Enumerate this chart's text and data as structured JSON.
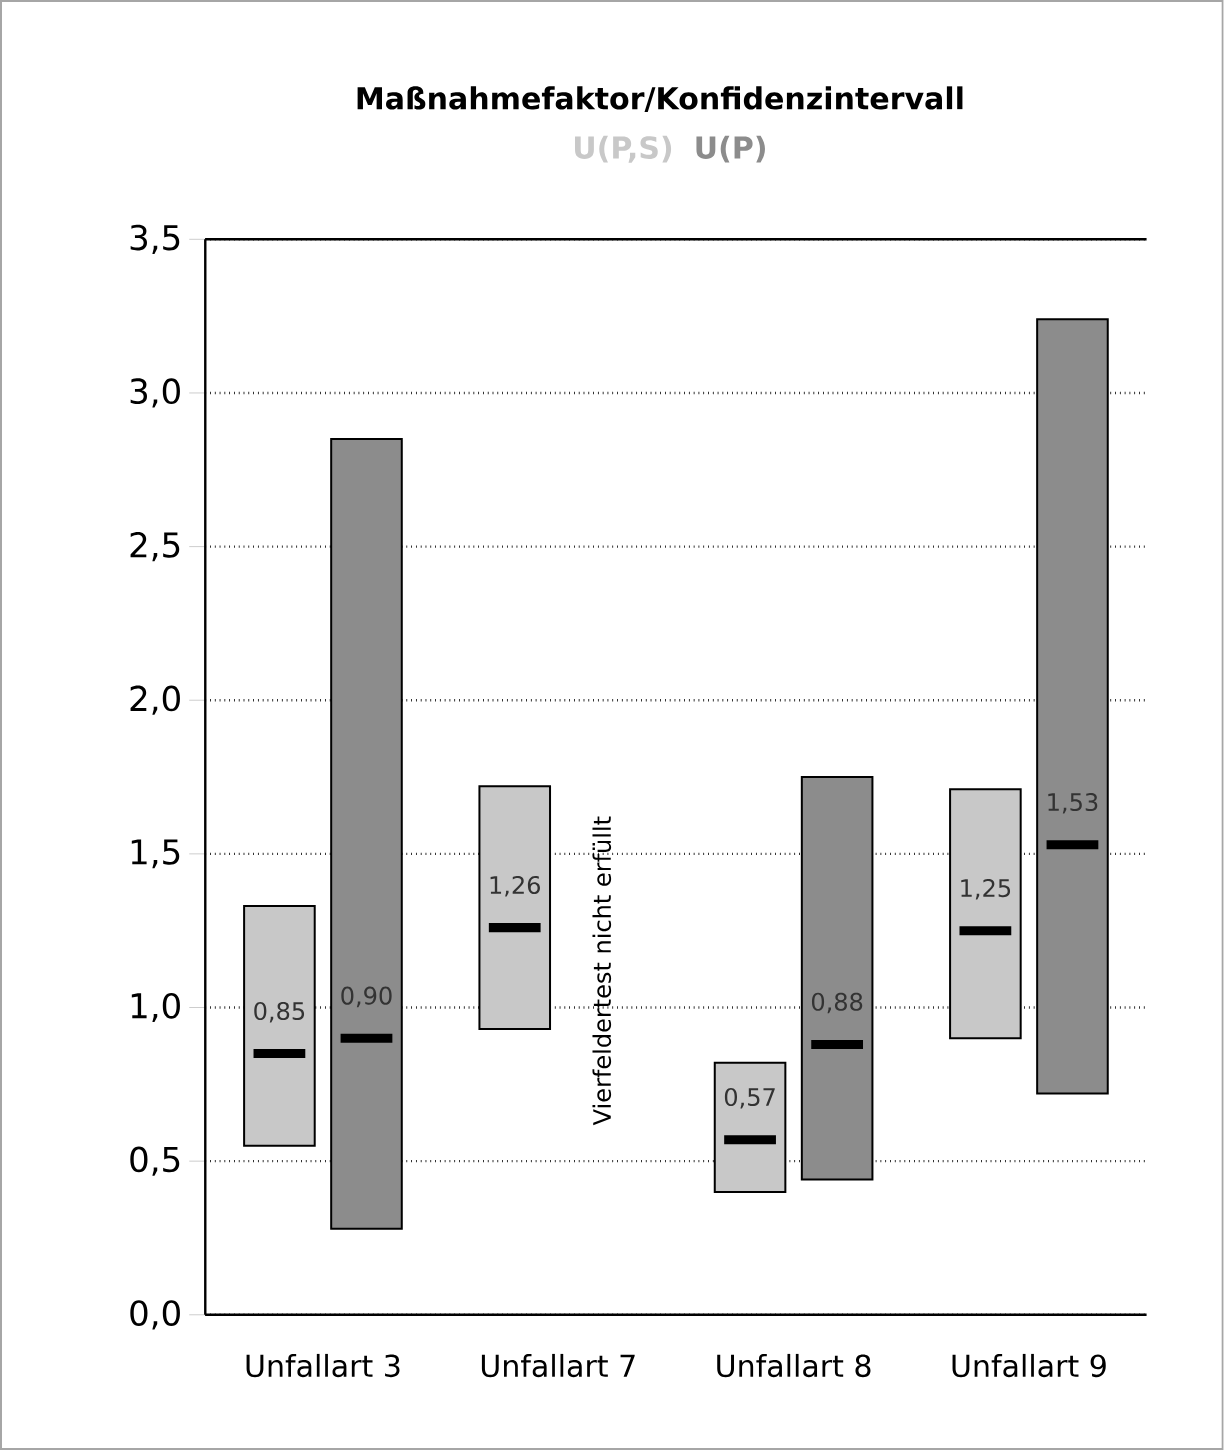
{
  "chart_data": {
    "type": "box",
    "title": "Maßnahmefaktor/Konfidenzintervall",
    "categories": [
      "Unfallart 3",
      "Unfallart 7",
      "Unfallart 8",
      "Unfallart 9"
    ],
    "series": [
      {
        "name": "U(P,S)",
        "color": "#c8c8c8",
        "boxes": [
          {
            "low": 0.55,
            "q1": 0.55,
            "median": 0.85,
            "q3": 1.33,
            "high": 1.33
          },
          {
            "low": 0.93,
            "q1": 0.93,
            "median": 1.26,
            "q3": 1.72,
            "high": 1.72
          },
          {
            "low": 0.4,
            "q1": 0.4,
            "median": 0.57,
            "q3": 0.82,
            "high": 0.82
          },
          {
            "low": 0.9,
            "q1": 0.9,
            "median": 1.25,
            "q3": 1.71,
            "high": 1.71
          }
        ]
      },
      {
        "name": "U(P)",
        "color": "#8c8c8c",
        "boxes": [
          {
            "low": 0.28,
            "q1": 0.28,
            "median": 0.9,
            "q3": 2.85,
            "high": 2.85
          },
          null,
          {
            "low": 0.44,
            "q1": 0.44,
            "median": 0.88,
            "q3": 1.75,
            "high": 1.75
          },
          {
            "low": 0.72,
            "q1": 0.72,
            "median": 1.53,
            "q3": 3.24,
            "high": 3.24
          }
        ]
      }
    ],
    "ylim": [
      0,
      3.5
    ],
    "yticks": [
      {
        "value": 0,
        "label": "0,0"
      },
      {
        "value": 0.5,
        "label": "0,5"
      },
      {
        "value": 1,
        "label": "1,0"
      },
      {
        "value": 1.5,
        "label": "1,5"
      },
      {
        "value": 2,
        "label": "2,0"
      },
      {
        "value": 2.5,
        "label": "2,5"
      },
      {
        "value": 3,
        "label": "3,0"
      },
      {
        "value": 3.5,
        "label": "3,5"
      }
    ],
    "grid": "y",
    "legend": "top",
    "annotations": [
      {
        "text": "0,85",
        "x": "Unfallart 3",
        "y": 0.85
      },
      {
        "text": "1,26",
        "x": "Unfallart 7",
        "y": 1.26
      },
      {
        "text": "0,57",
        "x": "Unfallart 8",
        "y": 0.57
      },
      {
        "text": "1,25",
        "x": "Unfallart 9",
        "y": 1.25
      },
      {
        "text": "0,90",
        "x": "Unfallart 3",
        "y": 0.9
      },
      {
        "text": "0,88",
        "x": "Unfallart 8",
        "y": 0.88
      },
      {
        "text": "1,53",
        "x": "Unfallart 9",
        "y": 1.53
      },
      {
        "text": "Vierfeldertest nicht erfüllt",
        "x": "Unfallart 7",
        "y": 1.12
      }
    ]
  }
}
